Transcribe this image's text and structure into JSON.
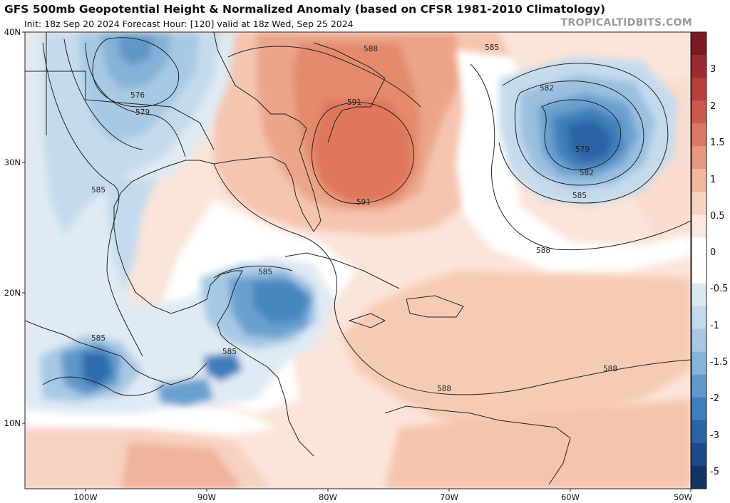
{
  "header": {
    "title": "GFS 500mb Geopotential Height & Normalized Anomaly (based on CFSR 1981-2010 Climatology)",
    "subtitle": "Init: 18z Sep 20 2024   Forecast Hour: [120]   valid at 18z Wed, Sep 25 2024",
    "credit": "TROPICALTIDBITS.COM"
  },
  "axes": {
    "lat_labels": [
      "40N",
      "30N",
      "20N",
      "10N"
    ],
    "lon_labels": [
      "100W",
      "90W",
      "80W",
      "70W",
      "60W",
      "50W"
    ]
  },
  "colorbar": {
    "labels": [
      "3",
      "2",
      "1.5",
      "1",
      "0.5",
      "0",
      "-0.5",
      "-1",
      "-1.5",
      "-2",
      "-3",
      "-5"
    ],
    "colors": [
      "#7a1a22",
      "#9c2a2e",
      "#b83f3b",
      "#cc5a4c",
      "#db7a64",
      "#e8987e",
      "#f1b8a0",
      "#f7d3c2",
      "#fbe8de",
      "#ffffff",
      "#ffffff",
      "#dce9f3",
      "#c3d9ec",
      "#a6c8e3",
      "#86b3d8",
      "#6199cb",
      "#3f7eba",
      "#2a63a5",
      "#1c4a8a",
      "#123465"
    ]
  },
  "contours": {
    "labels": [
      "576",
      "579",
      "585",
      "588",
      "591",
      "591",
      "585",
      "582",
      "579",
      "582",
      "585",
      "588",
      "585",
      "585",
      "585",
      "588",
      "588"
    ]
  }
}
